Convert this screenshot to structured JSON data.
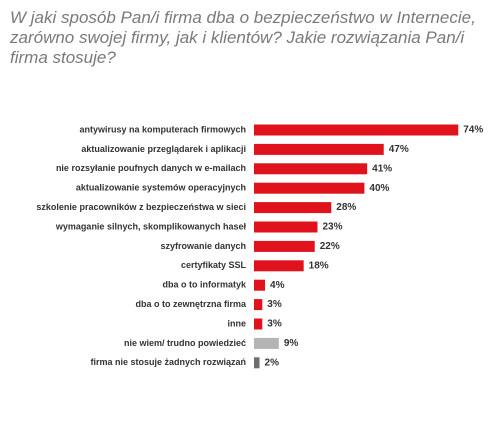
{
  "chart_data": {
    "type": "bar",
    "orientation": "horizontal",
    "title": "W jaki sposób Pan/i firma dba o bezpieczeństwo w Internecie, zarówno swojej firmy, jak i klientów? Jakie rozwiązania Pan/i firma stosuje?",
    "categories": [
      "antywirusy na komputerach firmowych",
      "aktualizowanie przeglądarek i aplikacji",
      "nie rozsyłanie poufnych danych w e-mailach",
      "aktualizowanie systemów operacyjnych",
      "szkolenie pracowników z bezpieczeństwa w sieci",
      "wymaganie silnych, skomplikowanych haseł",
      "szyfrowanie danych",
      "certyfikaty SSL",
      "dba o to informatyk",
      "dba o to zewnętrzna firma",
      "inne",
      "nie wiem/ trudno powiedzieć",
      "firma nie stosuje żadnych rozwiązań"
    ],
    "values": [
      74,
      47,
      41,
      40,
      28,
      23,
      22,
      18,
      4,
      3,
      3,
      9,
      2
    ],
    "value_labels": [
      "74%",
      "47%",
      "41%",
      "40%",
      "28%",
      "23%",
      "22%",
      "18%",
      "4%",
      "3%",
      "3%",
      "9%",
      "2%"
    ],
    "colors": [
      "#e0121b",
      "#e0121b",
      "#e0121b",
      "#e0121b",
      "#e0121b",
      "#e0121b",
      "#e0121b",
      "#e0121b",
      "#e0121b",
      "#e0121b",
      "#e0121b",
      "#b4b4b4",
      "#6e6e6e"
    ]
  }
}
